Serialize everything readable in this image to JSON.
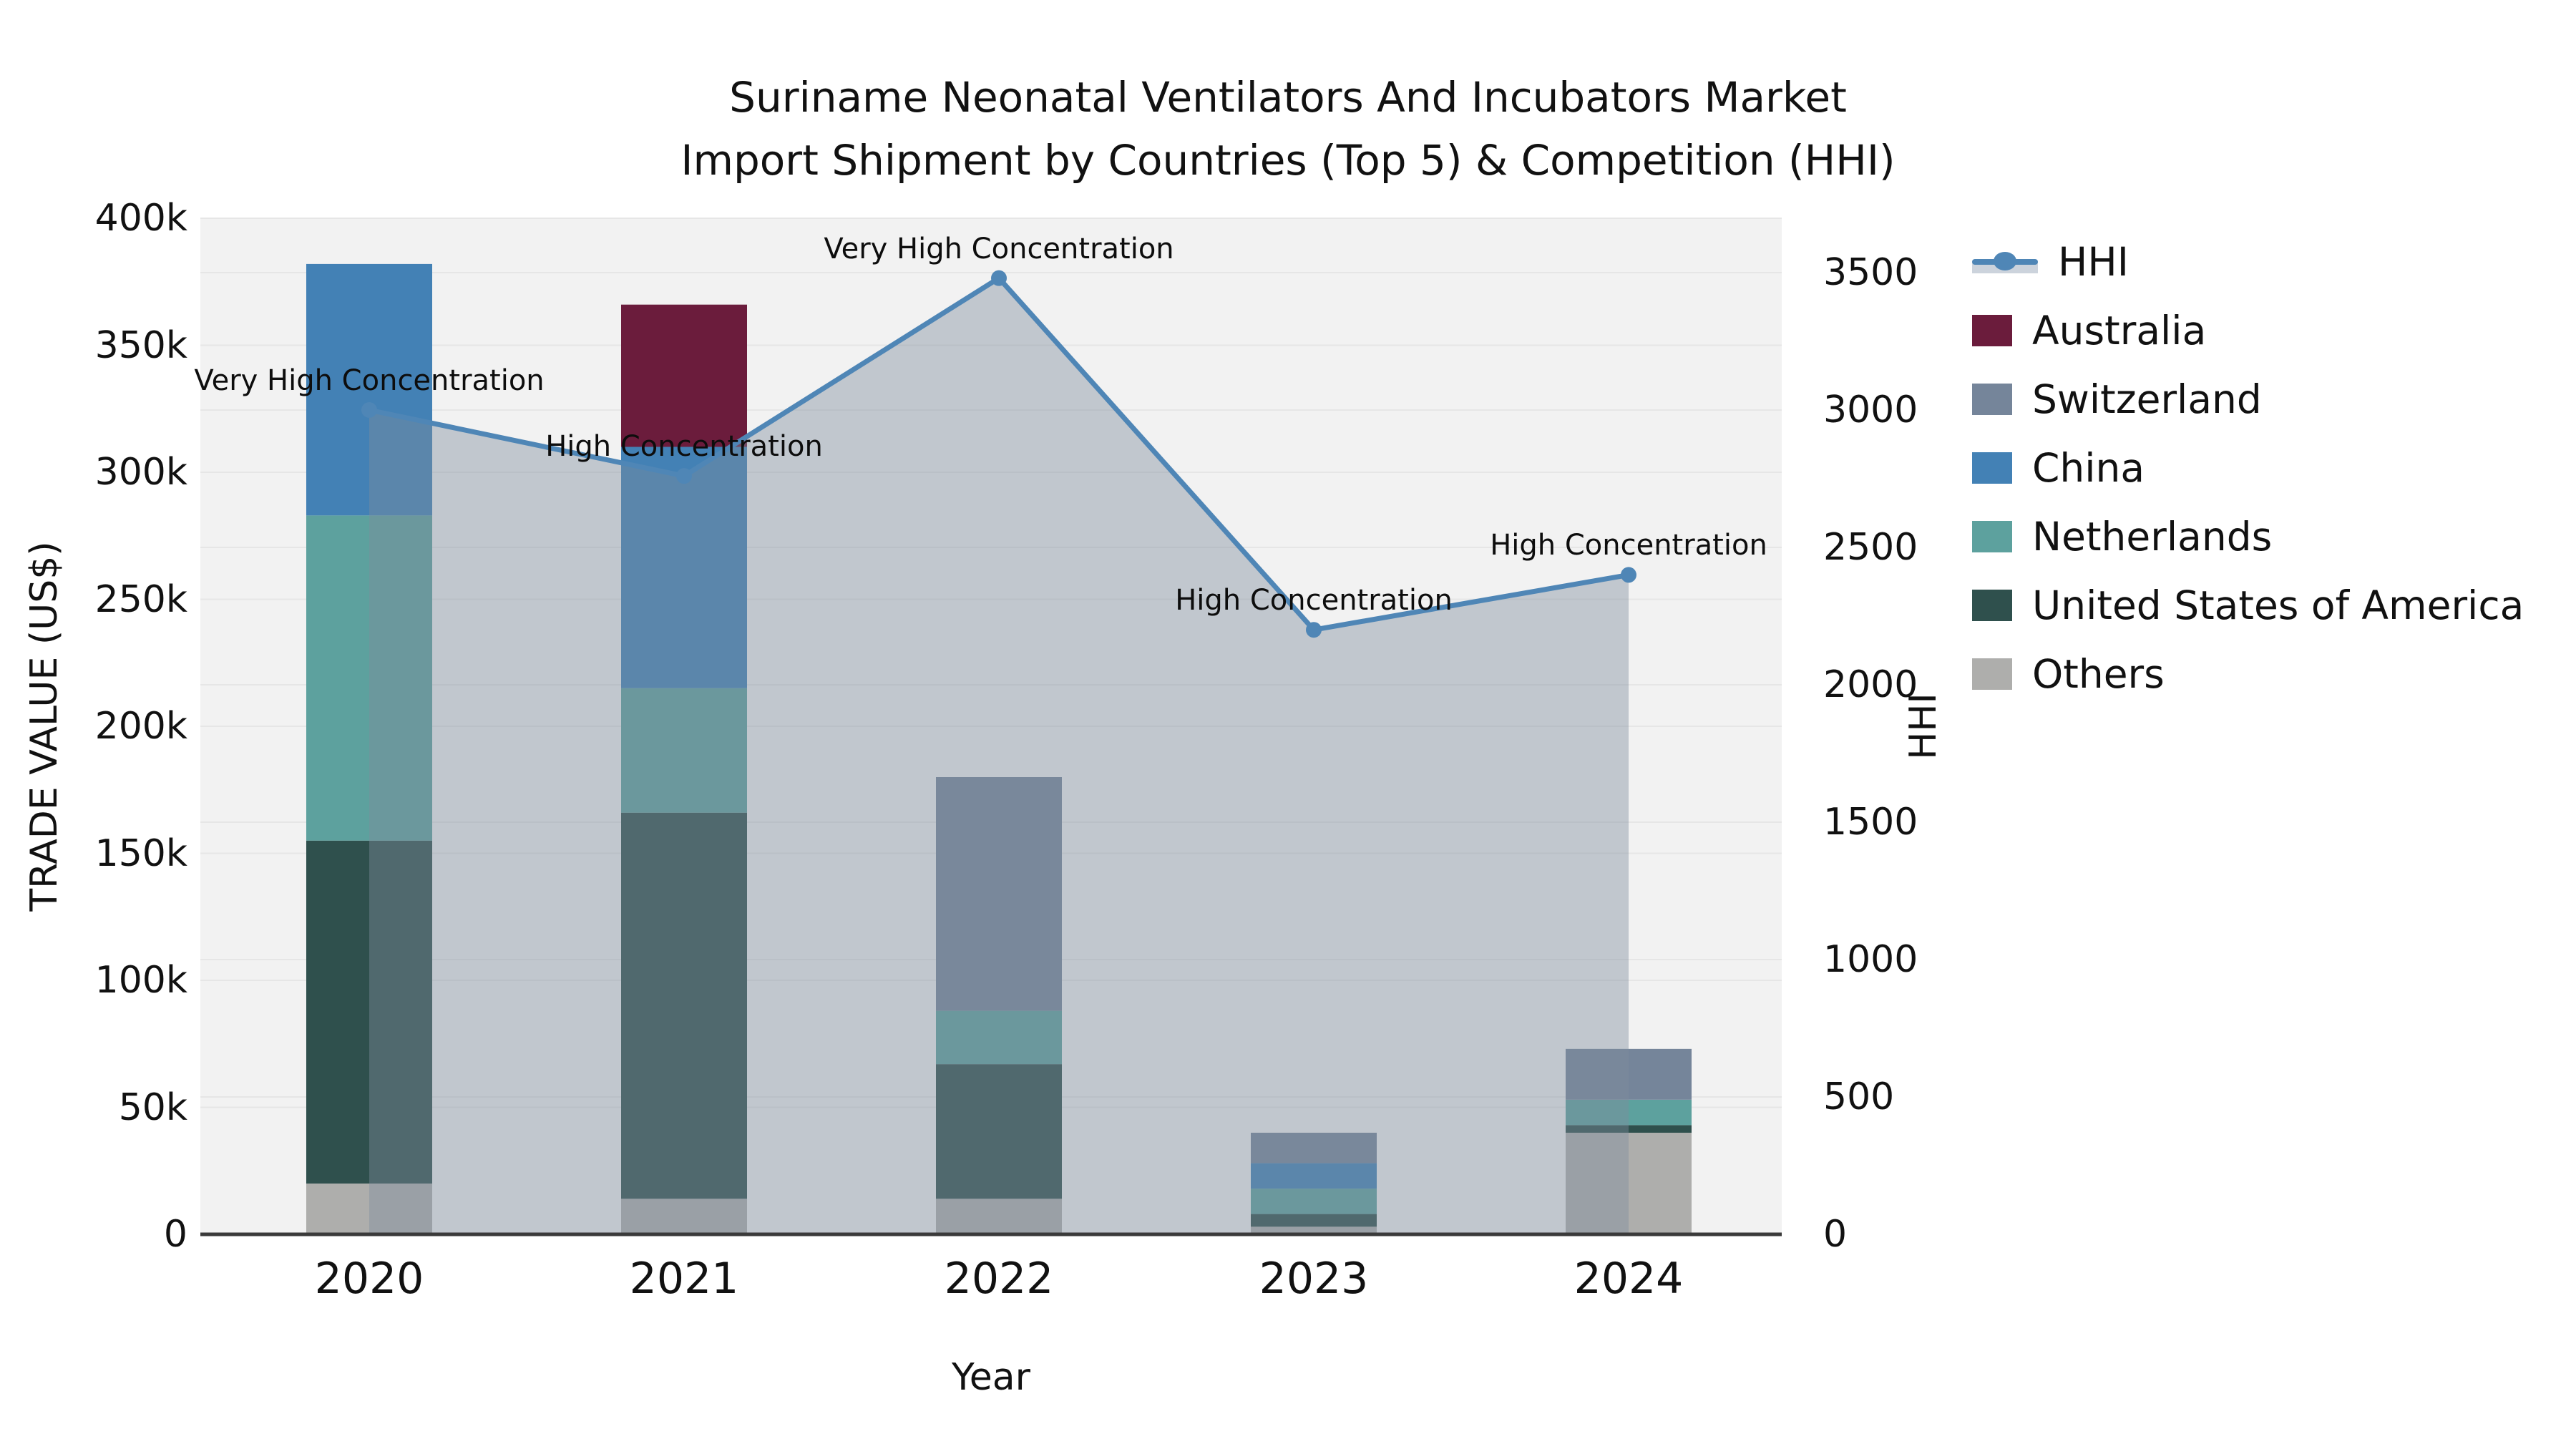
{
  "title": {
    "line1": "Suriname Neonatal Ventilators And Incubators Market",
    "line2": "Import Shipment by Countries (Top 5) & Competition (HHI)"
  },
  "axes": {
    "y_left": {
      "title": "TRADE VALUE (US$)",
      "tick_labels": [
        "0",
        "50k",
        "100k",
        "150k",
        "200k",
        "250k",
        "300k",
        "350k",
        "400k"
      ]
    },
    "y_right": {
      "title": "HHI",
      "tick_labels": [
        "0",
        "500",
        "1000",
        "1500",
        "2000",
        "2500",
        "3000",
        "3500"
      ]
    },
    "x": {
      "title": "Year",
      "tick_labels": [
        "2020",
        "2021",
        "2022",
        "2023",
        "2024"
      ]
    }
  },
  "legend": {
    "items": [
      {
        "label": "HHI",
        "type": "line",
        "color": "#4f86b6"
      },
      {
        "label": "Australia",
        "type": "swatch",
        "color": "#6b1c3c"
      },
      {
        "label": "Switzerland",
        "type": "swatch",
        "color": "#75859a"
      },
      {
        "label": "China",
        "type": "swatch",
        "color": "#4381b5"
      },
      {
        "label": "Netherlands",
        "type": "swatch",
        "color": "#5da19e"
      },
      {
        "label": "United States of America",
        "type": "swatch",
        "color": "#2f504d"
      },
      {
        "label": "Others",
        "type": "swatch",
        "color": "#aeaeac"
      }
    ]
  },
  "chart_data": {
    "type": "bar+line",
    "title": "Suriname Neonatal Ventilators And Incubators Market Import Shipment by Countries (Top 5) & Competition (HHI)",
    "xlabel": "Year",
    "ylabel_left": "TRADE VALUE (US$)",
    "ylabel_right": "HHI",
    "categories": [
      "2020",
      "2021",
      "2022",
      "2023",
      "2024"
    ],
    "bar_units": "thousand US$",
    "ylim_left_thousand_usd": [
      0,
      400
    ],
    "ylim_right_hhi": [
      0,
      3700
    ],
    "grid": "both-y-axes",
    "legend_position": "outside-right",
    "series": [
      {
        "name": "Australia",
        "color": "#6b1c3c",
        "values_k": [
          0,
          56,
          0,
          0,
          0
        ]
      },
      {
        "name": "Switzerland",
        "color": "#75859a",
        "values_k": [
          0,
          0,
          92,
          12,
          20
        ]
      },
      {
        "name": "China",
        "color": "#4381b5",
        "values_k": [
          99,
          95,
          0,
          10,
          0
        ]
      },
      {
        "name": "Netherlands",
        "color": "#5da19e",
        "values_k": [
          128,
          49,
          21,
          10,
          10
        ]
      },
      {
        "name": "United States of America",
        "color": "#2f504d",
        "values_k": [
          135,
          152,
          53,
          5,
          3
        ]
      },
      {
        "name": "Others",
        "color": "#aeaeac",
        "values_k": [
          20,
          14,
          14,
          3,
          40
        ]
      }
    ],
    "bar_totals_k": [
      382,
      366,
      180,
      40,
      73
    ],
    "hhi_line": {
      "name": "HHI",
      "values": [
        3000,
        2760,
        3480,
        2200,
        2400
      ],
      "line_color": "#4f86b6",
      "area_fill": "rgba(126,140,158,0.42)",
      "marker": "circle"
    },
    "annotations": [
      {
        "year": "2020",
        "text": "Very High Concentration"
      },
      {
        "year": "2021",
        "text": "High Concentration"
      },
      {
        "year": "2022",
        "text": "Very High Concentration"
      },
      {
        "year": "2023",
        "text": "High Concentration"
      },
      {
        "year": "2024",
        "text": "High Concentration"
      }
    ]
  }
}
